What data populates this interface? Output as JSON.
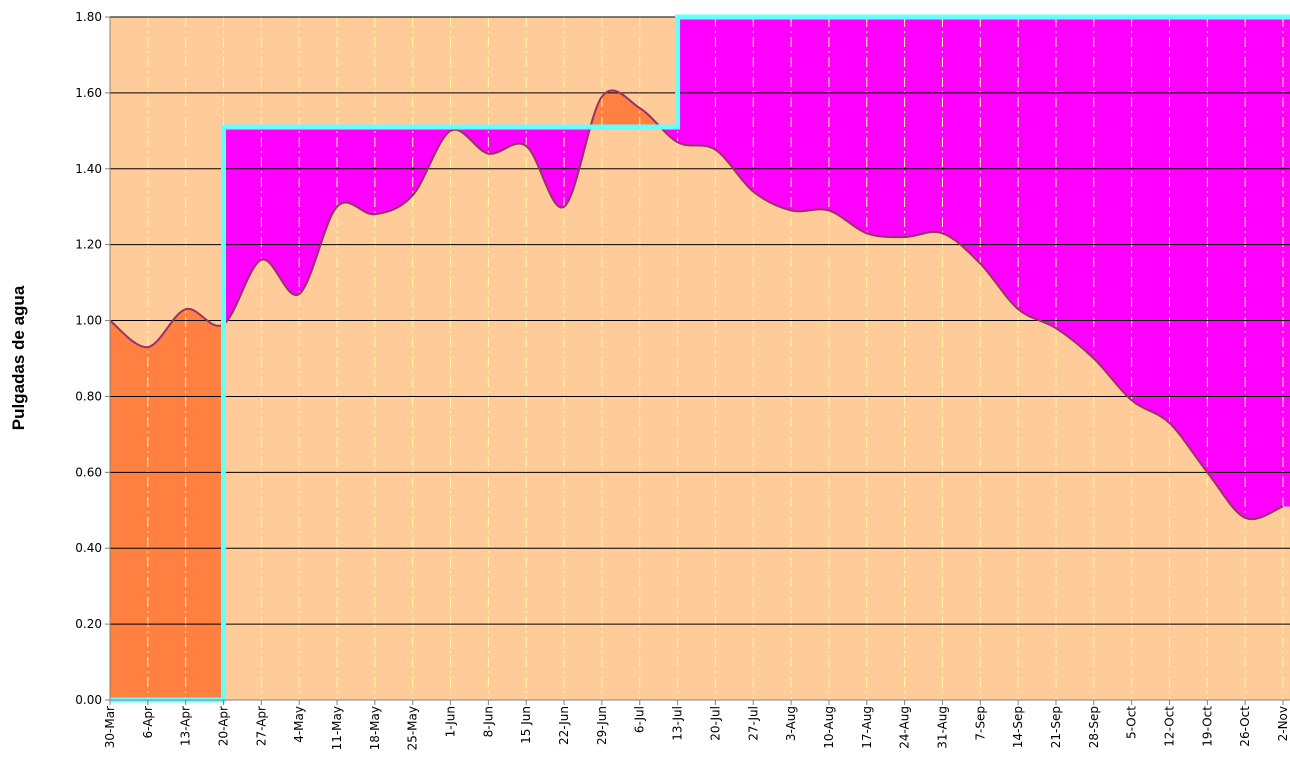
{
  "chart_data": {
    "type": "line",
    "ylabel": "Pulgadas de agua",
    "categories": [
      "30-Mar",
      "6-Apr",
      "13-Apr",
      "20-Apr",
      "27-Apr",
      "4-May",
      "11-May",
      "18-May",
      "25-May",
      "1-Jun",
      "8-Jun",
      "15 Jun",
      "22-Jun",
      "29-Jun",
      "6-Jul",
      "13-Jul",
      "20-Jul",
      "27-Jul",
      "3-Aug",
      "10-Aug",
      "17-Aug",
      "24-Aug",
      "31-Aug",
      "7-Sep",
      "14-Sep",
      "21-Sep",
      "28-Sep",
      "5-Oct",
      "12-Oct",
      "19-Oct",
      "26-Oct",
      "2-Nov"
    ],
    "series": [
      {
        "color": "#993366",
        "values": [
          1.0,
          0.93,
          1.03,
          0.99,
          1.16,
          1.07,
          1.3,
          1.28,
          1.33,
          1.5,
          1.44,
          1.46,
          1.3,
          1.59,
          1.56,
          1.47,
          1.45,
          1.34,
          1.29,
          1.29,
          1.23,
          1.22,
          1.23,
          1.15,
          1.03,
          0.98,
          0.9,
          0.79,
          0.73,
          0.6,
          0.48,
          0.51
        ]
      },
      {
        "color": "#66ffff",
        "step": true,
        "values": [
          0.0,
          0.0,
          0.0,
          1.51,
          1.51,
          1.51,
          1.51,
          1.51,
          1.51,
          1.51,
          1.51,
          1.51,
          1.51,
          1.51,
          1.51,
          1.8,
          1.8,
          1.8,
          1.8,
          1.8,
          1.8,
          1.8,
          1.8,
          1.8,
          1.8,
          1.8,
          1.8,
          1.8,
          1.8,
          1.8,
          1.8,
          1.8
        ]
      }
    ],
    "fill_colors": {
      "background": "#ffcc99",
      "below_step": "#ff00ff",
      "above_step": "#ff8040"
    },
    "ylim": [
      0,
      1.8
    ],
    "yticks": [
      {
        "value": 0,
        "label": "0.00"
      },
      {
        "value": 0.2,
        "label": "0.20"
      },
      {
        "value": 0.4,
        "label": "0.40"
      },
      {
        "value": 0.6,
        "label": "0.60"
      },
      {
        "value": 0.8,
        "label": "0.80"
      },
      {
        "value": 1,
        "label": "1.00"
      },
      {
        "value": 1.2,
        "label": "1.20"
      },
      {
        "value": 1.4,
        "label": "1.40"
      },
      {
        "value": 1.6,
        "label": "1.60"
      },
      {
        "value": 1.8,
        "label": "1.80"
      }
    ],
    "grid": true
  }
}
